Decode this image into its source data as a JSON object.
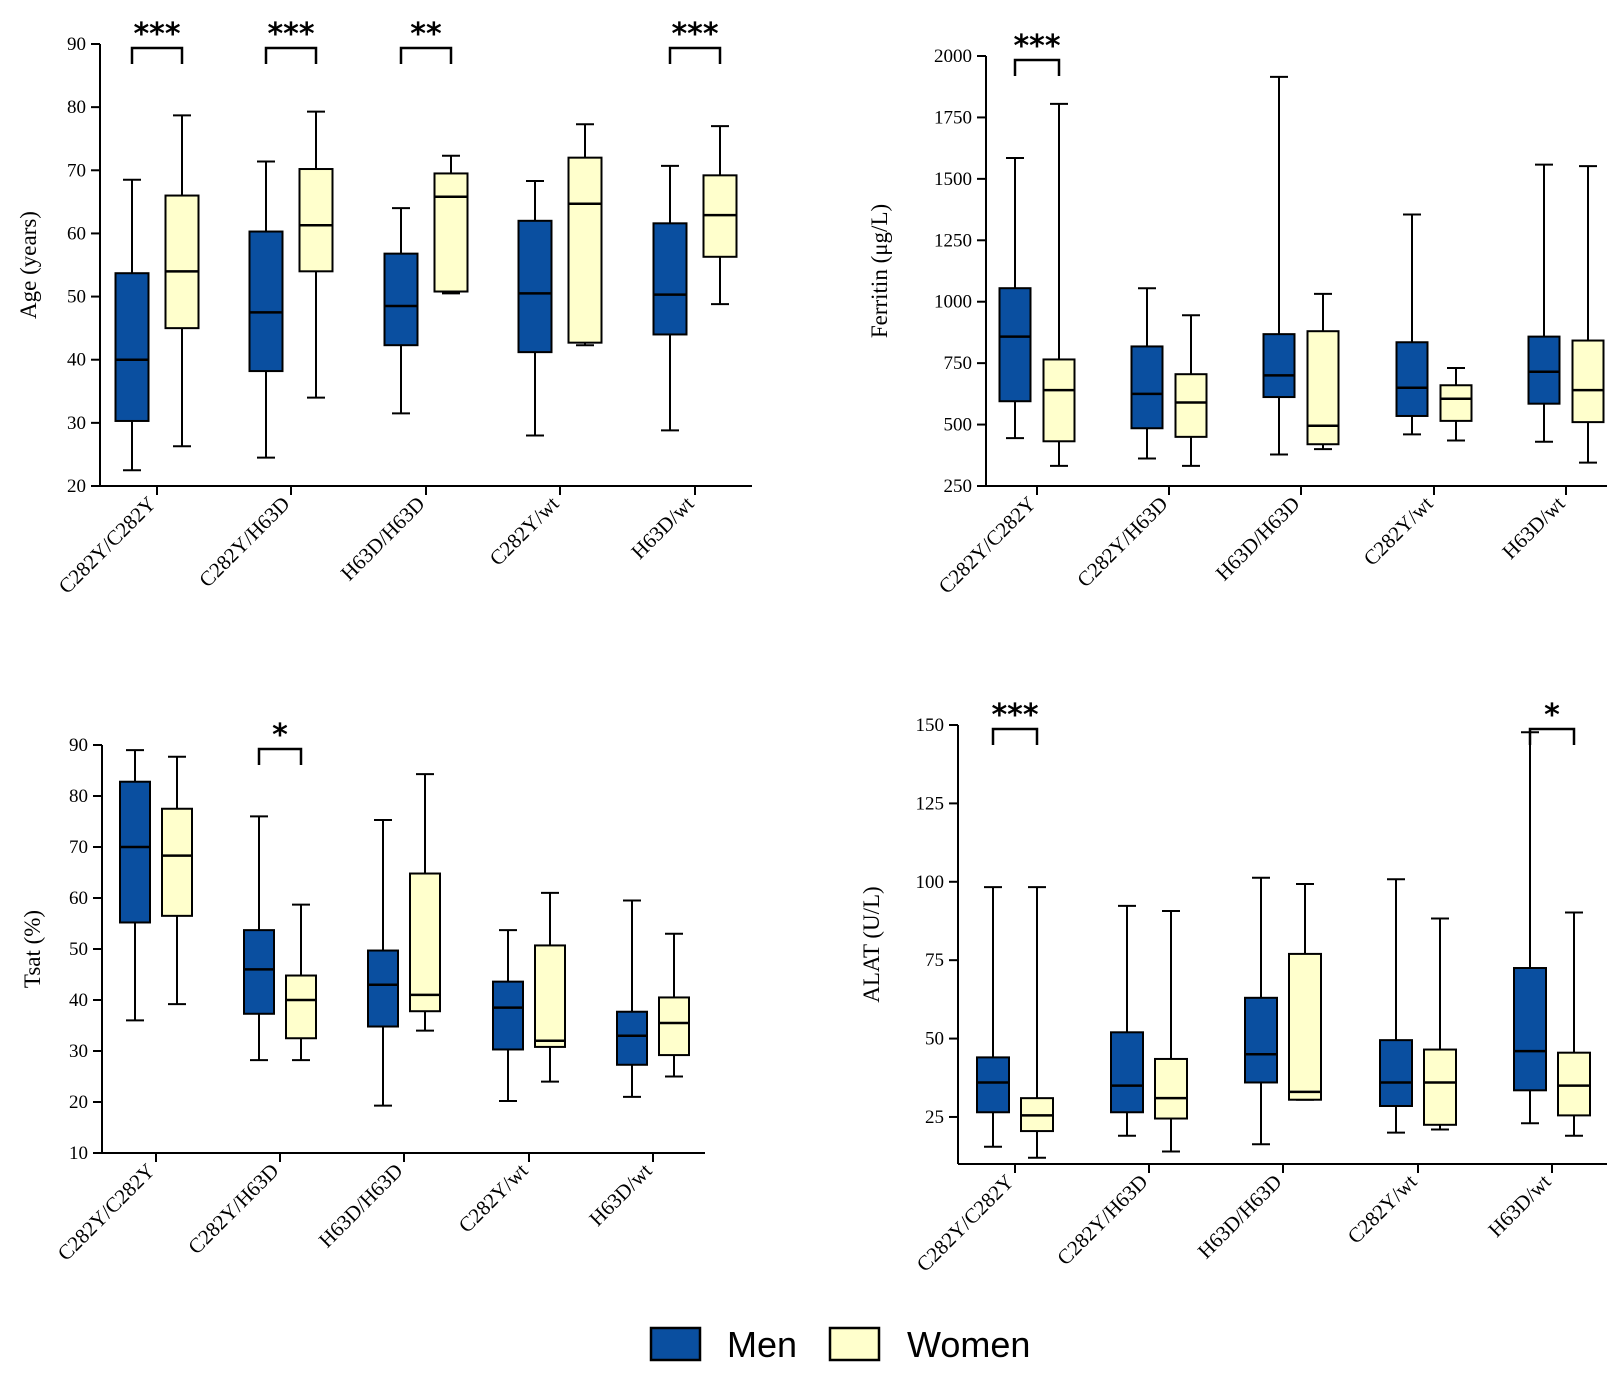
{
  "legend": {
    "men_label": "Men",
    "women_label": "Women",
    "men_color": "#0a4fa0",
    "women_color": "#ffffcc"
  },
  "chart_data": [
    {
      "type": "box",
      "id": "age",
      "ylabel": "Age (years)",
      "ylim": [
        20,
        90
      ],
      "yticks": [
        20,
        30,
        40,
        50,
        60,
        70,
        80,
        90
      ],
      "categories": [
        "C282Y/C282Y",
        "C282Y/H63D",
        "H63D/H63D",
        "C282Y/wt",
        "H63D/wt"
      ],
      "series": [
        {
          "name": "Men",
          "boxes": [
            {
              "min": 22.5,
              "q1": 30.3,
              "median": 40,
              "q3": 53.7,
              "max": 68.5
            },
            {
              "min": 24.5,
              "q1": 38.2,
              "median": 47.5,
              "q3": 60.3,
              "max": 71.4
            },
            {
              "min": 31.5,
              "q1": 42.3,
              "median": 48.5,
              "q3": 56.8,
              "max": 64
            },
            {
              "min": 28,
              "q1": 41.2,
              "median": 50.5,
              "q3": 62,
              "max": 68.3
            },
            {
              "min": 28.8,
              "q1": 44,
              "median": 50.3,
              "q3": 61.6,
              "max": 70.7
            }
          ]
        },
        {
          "name": "Women",
          "boxes": [
            {
              "min": 26.3,
              "q1": 45,
              "median": 54,
              "q3": 66,
              "max": 78.7
            },
            {
              "min": 34,
              "q1": 54,
              "median": 61.3,
              "q3": 70.2,
              "max": 79.3
            },
            {
              "min": 50.5,
              "q1": 50.8,
              "median": 65.8,
              "q3": 69.5,
              "max": 72.3
            },
            {
              "min": 42.3,
              "q1": 42.7,
              "median": 64.7,
              "q3": 72,
              "max": 77.3
            },
            {
              "min": 48.8,
              "q1": 56.3,
              "median": 62.9,
              "q3": 69.2,
              "max": 77
            }
          ]
        }
      ],
      "significance": [
        {
          "category": 0,
          "label": "***"
        },
        {
          "category": 1,
          "label": "***"
        },
        {
          "category": 2,
          "label": "**"
        },
        {
          "category": 4,
          "label": "***"
        }
      ]
    },
    {
      "type": "box",
      "id": "ferritin",
      "ylabel": "Ferritin (μg/L)",
      "ylim": [
        250,
        2000
      ],
      "yticks": [
        250,
        500,
        750,
        1000,
        1250,
        1500,
        1750,
        2000
      ],
      "categories": [
        "C282Y/C282Y",
        "C282Y/H63D",
        "H63D/H63D",
        "C282Y/wt",
        "H63D/wt"
      ],
      "series": [
        {
          "name": "Men",
          "boxes": [
            {
              "min": 445,
              "q1": 595,
              "median": 858,
              "q3": 1055,
              "max": 1585
            },
            {
              "min": 362,
              "q1": 485,
              "median": 625,
              "q3": 818,
              "max": 1055
            },
            {
              "min": 378,
              "q1": 612,
              "median": 700,
              "q3": 868,
              "max": 1915
            },
            {
              "min": 460,
              "q1": 535,
              "median": 650,
              "q3": 835,
              "max": 1355
            },
            {
              "min": 430,
              "q1": 585,
              "median": 715,
              "q3": 858,
              "max": 1558
            }
          ]
        },
        {
          "name": "Women",
          "boxes": [
            {
              "min": 332,
              "q1": 432,
              "median": 640,
              "q3": 765,
              "max": 1805
            },
            {
              "min": 332,
              "q1": 450,
              "median": 590,
              "q3": 705,
              "max": 945
            },
            {
              "min": 400,
              "q1": 420,
              "median": 495,
              "q3": 880,
              "max": 1032
            },
            {
              "min": 435,
              "q1": 515,
              "median": 605,
              "q3": 660,
              "max": 730
            },
            {
              "min": 345,
              "q1": 510,
              "median": 640,
              "q3": 842,
              "max": 1552
            }
          ]
        }
      ],
      "significance": [
        {
          "category": 0,
          "label": "***"
        }
      ]
    },
    {
      "type": "box",
      "id": "tsat",
      "ylabel": "Tsat (%)",
      "ylim": [
        10,
        90
      ],
      "yticks": [
        10,
        20,
        30,
        40,
        50,
        60,
        70,
        80,
        90
      ],
      "categories": [
        "C282Y/C282Y",
        "C282Y/H63D",
        "H63D/H63D",
        "C282Y/wt",
        "H63D/wt"
      ],
      "series": [
        {
          "name": "Men",
          "boxes": [
            {
              "min": 36,
              "q1": 55.2,
              "median": 70,
              "q3": 82.8,
              "max": 89
            },
            {
              "min": 28.2,
              "q1": 37.3,
              "median": 46,
              "q3": 53.7,
              "max": 76
            },
            {
              "min": 19.3,
              "q1": 34.8,
              "median": 43,
              "q3": 49.7,
              "max": 75.3
            },
            {
              "min": 20.2,
              "q1": 30.3,
              "median": 38.5,
              "q3": 43.6,
              "max": 53.7
            },
            {
              "min": 21,
              "q1": 27.3,
              "median": 33,
              "q3": 37.7,
              "max": 59.5
            }
          ]
        },
        {
          "name": "Women",
          "boxes": [
            {
              "min": 39.2,
              "q1": 56.5,
              "median": 68.3,
              "q3": 77.5,
              "max": 87.7
            },
            {
              "min": 28.2,
              "q1": 32.5,
              "median": 40,
              "q3": 44.8,
              "max": 58.7
            },
            {
              "min": 34,
              "q1": 37.8,
              "median": 41,
              "q3": 64.8,
              "max": 84.3
            },
            {
              "min": 24,
              "q1": 30.8,
              "median": 32,
              "q3": 50.7,
              "max": 61
            },
            {
              "min": 25,
              "q1": 29.2,
              "median": 35.5,
              "q3": 40.5,
              "max": 53
            }
          ]
        }
      ],
      "significance": [
        {
          "category": 1,
          "label": "*"
        }
      ]
    },
    {
      "type": "box",
      "id": "alat",
      "ylabel": "ALAT (U/L)",
      "ylim": [
        10,
        150
      ],
      "yticks": [
        25,
        50,
        75,
        100,
        125,
        150
      ],
      "categories": [
        "C282Y/C282Y",
        "C282Y/H63D",
        "H63D/H63D",
        "C282Y/wt",
        "H63D/wt"
      ],
      "series": [
        {
          "name": "Men",
          "boxes": [
            {
              "min": 15.5,
              "q1": 26.5,
              "median": 36,
              "q3": 44,
              "max": 98.3
            },
            {
              "min": 19,
              "q1": 26.5,
              "median": 35,
              "q3": 52,
              "max": 92.3
            },
            {
              "min": 16.3,
              "q1": 36,
              "median": 45,
              "q3": 63,
              "max": 101.3
            },
            {
              "min": 20,
              "q1": 28.5,
              "median": 36,
              "q3": 49.5,
              "max": 100.8
            },
            {
              "min": 23,
              "q1": 33.5,
              "median": 46,
              "q3": 72.5,
              "max": 147.7
            }
          ]
        },
        {
          "name": "Women",
          "boxes": [
            {
              "min": 12,
              "q1": 20.5,
              "median": 25.5,
              "q3": 31,
              "max": 98.3
            },
            {
              "min": 14,
              "q1": 24.5,
              "median": 31,
              "q3": 43.5,
              "max": 90.7
            },
            {
              "min": 30.5,
              "q1": 30.5,
              "median": 33,
              "q3": 77,
              "max": 99.3
            },
            {
              "min": 21,
              "q1": 22.5,
              "median": 36,
              "q3": 46.5,
              "max": 88.3
            },
            {
              "min": 19,
              "q1": 25.5,
              "median": 35,
              "q3": 45.5,
              "max": 90.2
            }
          ]
        }
      ],
      "significance": [
        {
          "category": 0,
          "label": "***"
        },
        {
          "category": 4,
          "label": "*"
        }
      ]
    }
  ]
}
